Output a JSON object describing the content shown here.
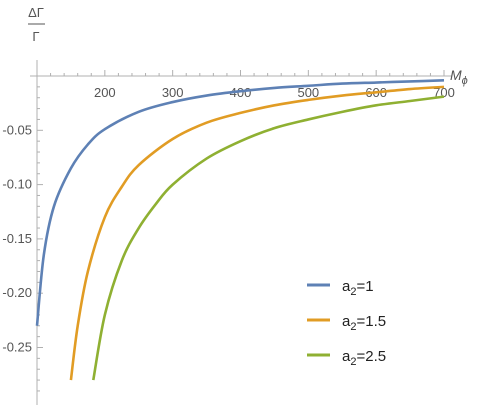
{
  "chart_data": {
    "type": "line",
    "xlabel_base": "M",
    "xlabel_sub": "ϕ",
    "ylabel_top": "ΔΓ",
    "ylabel_bottom": "Γ",
    "xlim": [
      100,
      700
    ],
    "ylim": [
      -0.28,
      0.01
    ],
    "x_ticks": [
      200,
      300,
      400,
      500,
      600,
      700
    ],
    "y_ticks": [
      -0.05,
      -0.1,
      -0.15,
      -0.2,
      -0.25
    ],
    "y_tick_labels": [
      "-0.05",
      "-0.10",
      "-0.15",
      "-0.20",
      "-0.25"
    ],
    "legend_position": "bottom-right",
    "series": [
      {
        "name_base": "a",
        "name_sub": "2",
        "name_value": "=1",
        "color": "#5e81b5",
        "x": [
          100,
          110,
          125,
          150,
          175,
          200,
          250,
          300,
          350,
          400,
          450,
          500,
          550,
          600,
          650,
          700
        ],
        "y": [
          -0.23,
          -0.165,
          -0.12,
          -0.085,
          -0.063,
          -0.049,
          -0.033,
          -0.024,
          -0.018,
          -0.014,
          -0.011,
          -0.009,
          -0.007,
          -0.006,
          -0.005,
          -0.004
        ]
      },
      {
        "name_base": "a",
        "name_sub": "2",
        "name_value": "=1.5",
        "color": "#e19c24",
        "x": [
          150,
          160,
          175,
          200,
          225,
          250,
          300,
          350,
          400,
          450,
          500,
          550,
          600,
          650,
          700
        ],
        "y": [
          -0.28,
          -0.23,
          -0.18,
          -0.13,
          -0.102,
          -0.082,
          -0.058,
          -0.043,
          -0.034,
          -0.027,
          -0.022,
          -0.018,
          -0.015,
          -0.012,
          -0.01
        ]
      },
      {
        "name_base": "a",
        "name_sub": "2",
        "name_value": "=2.5",
        "color": "#8fb032",
        "x": [
          183,
          200,
          225,
          250,
          275,
          300,
          350,
          400,
          450,
          500,
          550,
          600,
          650,
          700
        ],
        "y": [
          -0.28,
          -0.22,
          -0.17,
          -0.14,
          -0.118,
          -0.1,
          -0.076,
          -0.06,
          -0.048,
          -0.04,
          -0.033,
          -0.027,
          -0.023,
          -0.019
        ]
      }
    ]
  }
}
